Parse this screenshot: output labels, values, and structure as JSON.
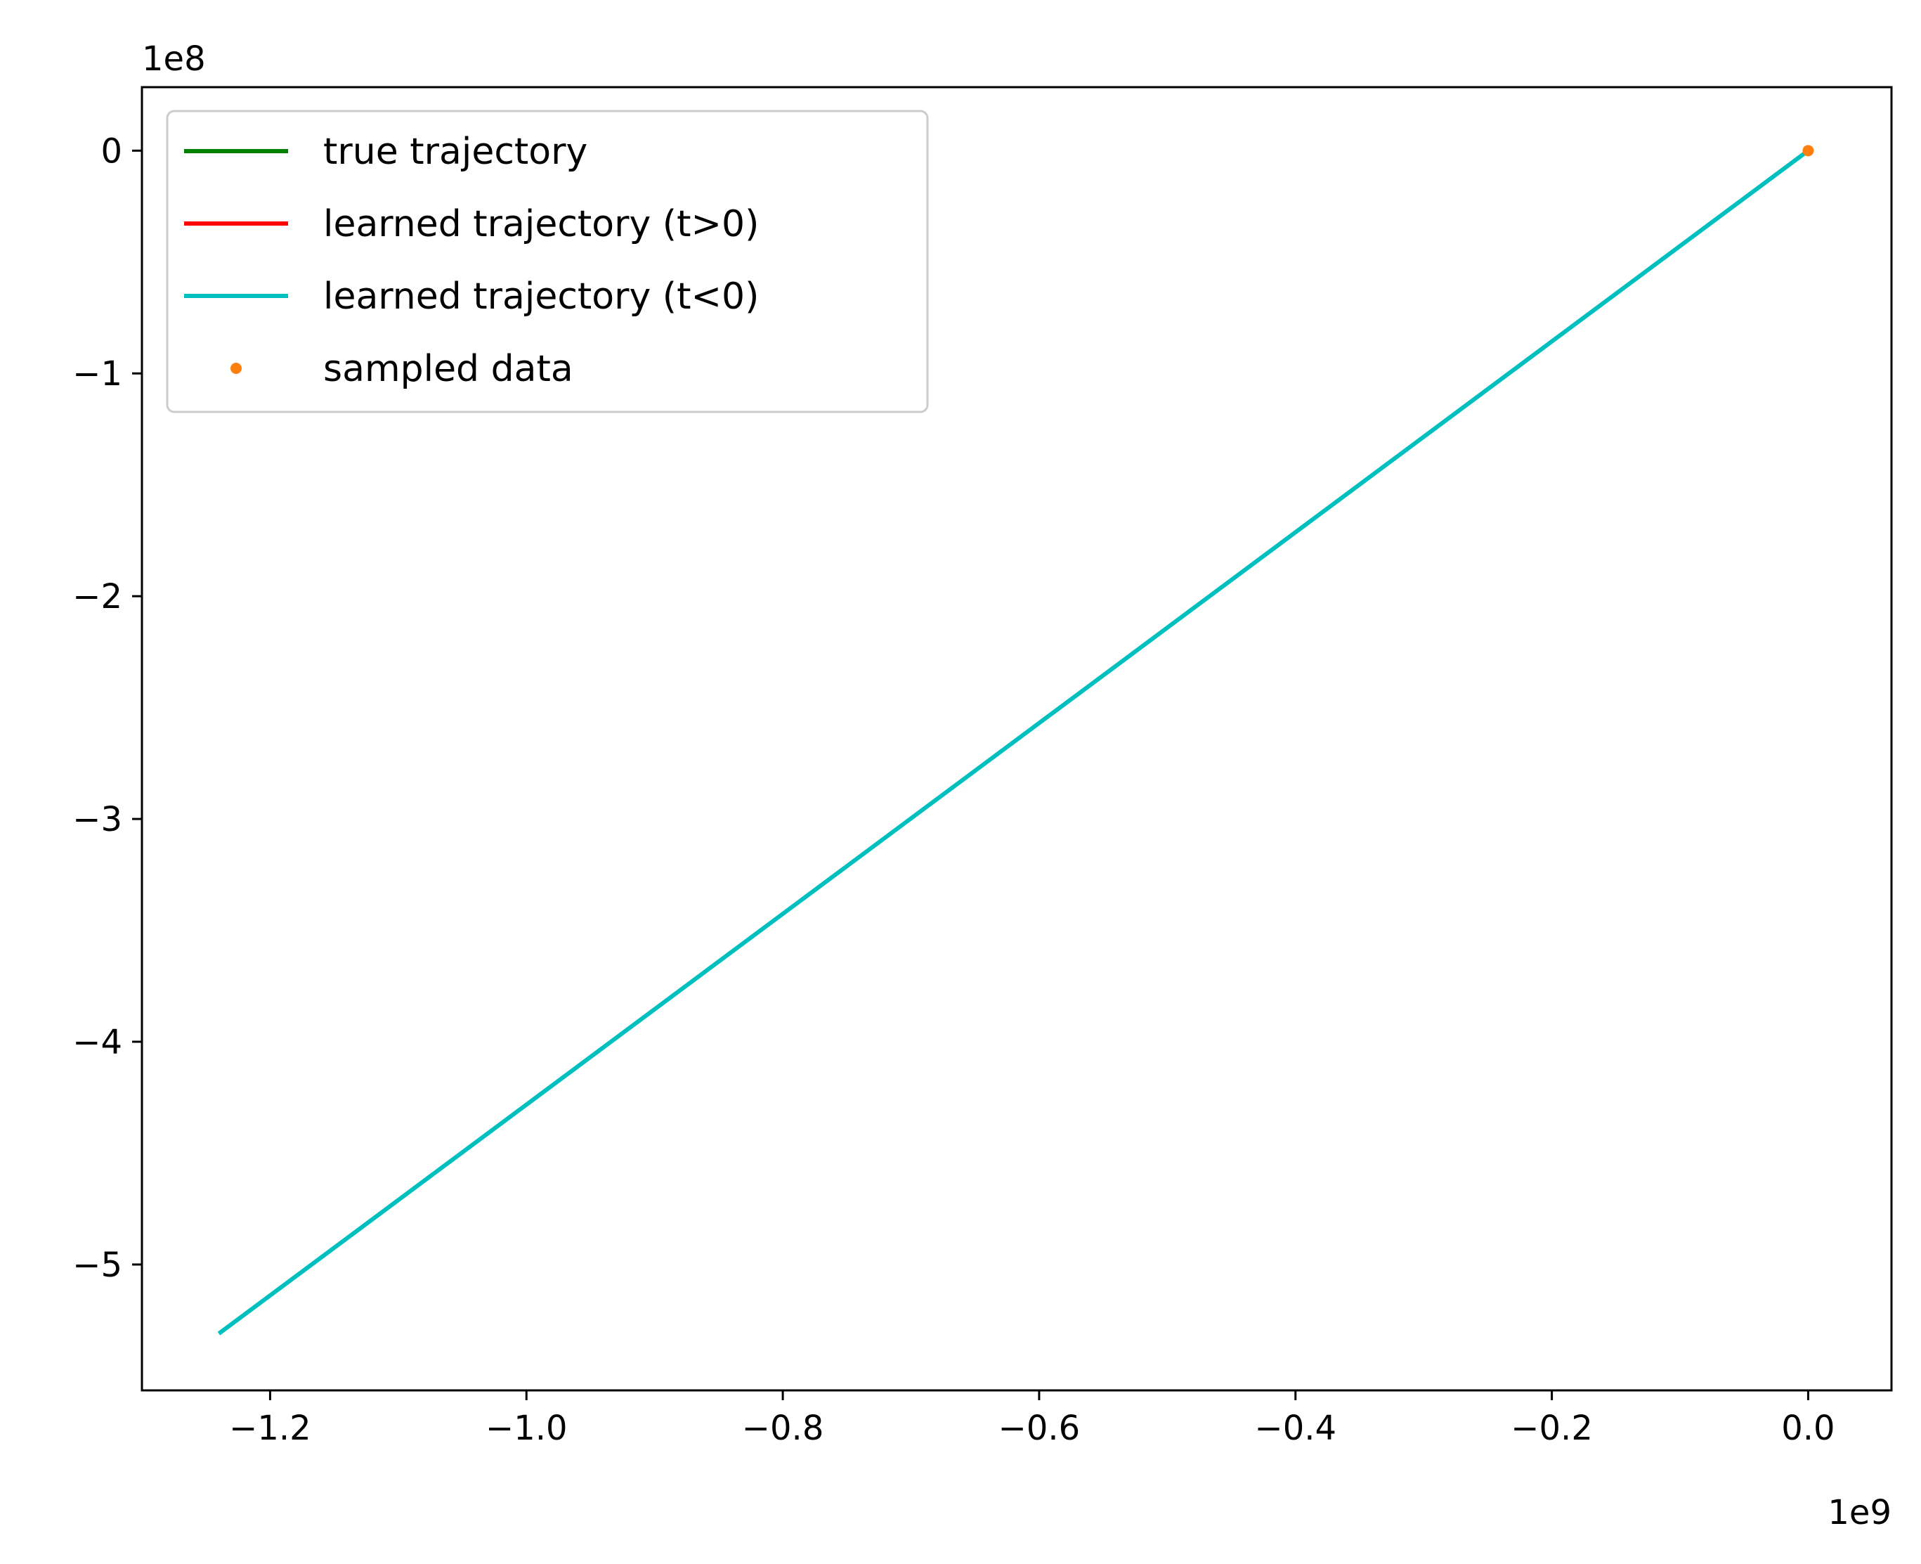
{
  "chart_data": {
    "type": "line",
    "title": "",
    "xlabel": "",
    "ylabel": "",
    "x_offset_label": "1e9",
    "y_offset_label": "1e8",
    "xlim": [
      -1.3,
      0.065
    ],
    "ylim": [
      -5.565,
      0.285
    ],
    "xticks": [
      {
        "value": -1.2,
        "label": "−1.2"
      },
      {
        "value": -1.0,
        "label": "−1.0"
      },
      {
        "value": -0.8,
        "label": "−0.8"
      },
      {
        "value": -0.6,
        "label": "−0.6"
      },
      {
        "value": -0.4,
        "label": "−0.4"
      },
      {
        "value": -0.2,
        "label": "−0.2"
      },
      {
        "value": 0.0,
        "label": "0.0"
      }
    ],
    "yticks": [
      {
        "value": 0,
        "label": "0"
      },
      {
        "value": -1,
        "label": "−1"
      },
      {
        "value": -2,
        "label": "−2"
      },
      {
        "value": -3,
        "label": "−3"
      },
      {
        "value": -4,
        "label": "−4"
      },
      {
        "value": -5,
        "label": "−5"
      }
    ],
    "grid": false,
    "legend_position": "top-left",
    "series": [
      {
        "name": "true trajectory",
        "kind": "line",
        "color": "#008000",
        "x": [
          0.0,
          0.0
        ],
        "y": [
          0.0,
          0.0
        ]
      },
      {
        "name": "learned trajectory (t>0)",
        "kind": "line",
        "color": "#ff0000",
        "x": [
          0.0,
          0.0
        ],
        "y": [
          0.0,
          0.0
        ]
      },
      {
        "name": "learned trajectory (t<0)",
        "kind": "line",
        "color": "#00bfbf",
        "x": [
          0.0,
          -1.24
        ],
        "y": [
          0.0,
          -5.31
        ]
      },
      {
        "name": "sampled data",
        "kind": "scatter",
        "color": "#ff7f0e",
        "x": [
          0.0
        ],
        "y": [
          0.0
        ]
      }
    ]
  }
}
